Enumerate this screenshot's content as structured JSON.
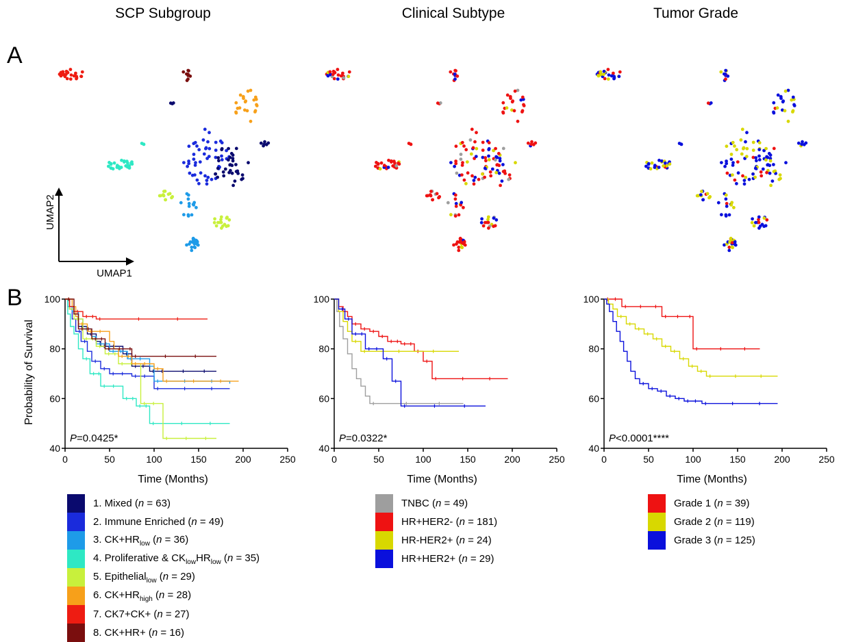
{
  "panel_letters": {
    "a": "A",
    "b": "B"
  },
  "column_titles": [
    "SCP Subgroup",
    "Clinical Subtype",
    "Tumor Grade"
  ],
  "colors": {
    "mixed": "#0a0a6e",
    "immune": "#1a2bdc",
    "ck_hr_low": "#1e9be8",
    "prolif": "#2ee8c4",
    "epi_low": "#c8f03c",
    "ck_hr_high": "#f7a01a",
    "ck7": "#ee1c12",
    "ck_hr": "#7a0e0e",
    "tnbc": "#9e9e9e",
    "hr_her2neg": "#ee1212",
    "hrneg_her2pos": "#d8d800",
    "hr_her2pos": "#0a10dc",
    "grade1": "#ee1212",
    "grade2": "#d8d800",
    "grade3": "#0a10dc"
  },
  "umap_axes": {
    "x": "UMAP1",
    "y": "UMAP2"
  },
  "chart_data": [
    {
      "type": "line",
      "title": "SCP Subgroup",
      "xlabel": "Time (Months)",
      "ylabel": "Probability of Survival",
      "xlim": [
        0,
        250
      ],
      "ylim": [
        40,
        100
      ],
      "xticks": [
        0,
        50,
        100,
        150,
        200,
        250
      ],
      "yticks": [
        40,
        60,
        80,
        100
      ],
      "annotation": {
        "italic": "P",
        "rest": "=0.0425*"
      },
      "series": [
        {
          "name": "1. Mixed (n = 63)",
          "color": "mixed",
          "x": [
            0,
            5,
            10,
            15,
            25,
            35,
            40,
            65,
            75,
            95,
            105,
            170
          ],
          "y": [
            100,
            97,
            94,
            89,
            86,
            83,
            81,
            78,
            73,
            71,
            71,
            71
          ]
        },
        {
          "name": "2. Immune Enriched (n = 49)",
          "color": "immune",
          "x": [
            0,
            5,
            8,
            12,
            18,
            25,
            30,
            40,
            50,
            75,
            100,
            185
          ],
          "y": [
            100,
            96,
            92,
            87,
            83,
            79,
            75,
            72,
            70,
            69,
            64,
            64
          ]
        },
        {
          "name": "3. CK+HRlow (n = 36)",
          "color": "ck_hr_low",
          "x": [
            0,
            3,
            8,
            15,
            20,
            30,
            35,
            50,
            70,
            95,
            100,
            185
          ],
          "y": [
            100,
            97,
            95,
            92,
            88,
            85,
            82,
            79,
            76,
            73,
            67,
            66
          ]
        },
        {
          "name": "4. Proliferative & CKlowHRlow (n = 35)",
          "color": "prolif",
          "x": [
            0,
            3,
            6,
            10,
            15,
            20,
            28,
            40,
            65,
            80,
            95,
            185
          ],
          "y": [
            100,
            94,
            89,
            86,
            80,
            76,
            70,
            65,
            60,
            57,
            50,
            50
          ]
        },
        {
          "name": "5. Epithelial low (n = 29)",
          "color": "epi_low",
          "x": [
            0,
            5,
            10,
            20,
            35,
            45,
            60,
            85,
            110,
            170
          ],
          "y": [
            100,
            96,
            92,
            84,
            81,
            78,
            74,
            58,
            44,
            44
          ]
        },
        {
          "name": "6. CK+HRhigh (n = 28)",
          "color": "ck_hr_high",
          "x": [
            0,
            8,
            12,
            15,
            25,
            50,
            55,
            60,
            75,
            100,
            110,
            195
          ],
          "y": [
            100,
            97,
            93,
            90,
            87,
            83,
            80,
            77,
            74,
            72,
            67,
            67
          ]
        },
        {
          "name": "7. CK7+CK+ (n = 27)",
          "color": "ck7",
          "x": [
            0,
            5,
            10,
            20,
            35,
            160
          ],
          "y": [
            100,
            97,
            95,
            93,
            92,
            92
          ]
        },
        {
          "name": "8. CK+HR+ (n = 16)",
          "color": "ck_hr",
          "x": [
            0,
            10,
            15,
            30,
            45,
            75,
            170
          ],
          "y": [
            100,
            94,
            88,
            84,
            80,
            77,
            77
          ]
        }
      ]
    },
    {
      "type": "line",
      "title": "Clinical Subtype",
      "xlabel": "Time (Months)",
      "ylabel": "",
      "xlim": [
        0,
        250
      ],
      "ylim": [
        40,
        100
      ],
      "xticks": [
        0,
        50,
        100,
        150,
        200,
        250
      ],
      "yticks": [
        40,
        60,
        80,
        100
      ],
      "annotation": {
        "italic": "P",
        "rest": "=0.0322*"
      },
      "series": [
        {
          "name": "TNBC (n = 49)",
          "color": "tnbc",
          "x": [
            0,
            3,
            6,
            10,
            15,
            20,
            25,
            30,
            35,
            40,
            145
          ],
          "y": [
            100,
            95,
            89,
            84,
            78,
            72,
            68,
            65,
            61,
            58,
            58
          ]
        },
        {
          "name": "HR+HER2- (n = 181)",
          "color": "hr_her2neg",
          "x": [
            0,
            5,
            10,
            15,
            20,
            30,
            40,
            50,
            60,
            75,
            90,
            100,
            110,
            195
          ],
          "y": [
            100,
            97,
            95,
            93,
            90,
            88,
            87,
            85,
            83,
            82,
            79,
            75,
            68,
            68
          ]
        },
        {
          "name": "HR-HER2+ (n = 24)",
          "color": "hrneg_her2pos",
          "x": [
            0,
            5,
            10,
            15,
            20,
            30,
            140
          ],
          "y": [
            100,
            95,
            91,
            87,
            83,
            79,
            79
          ]
        },
        {
          "name": "HR+HER2+ (n = 29)",
          "color": "hr_her2pos",
          "x": [
            0,
            5,
            12,
            20,
            35,
            55,
            65,
            75,
            170
          ],
          "y": [
            100,
            96,
            92,
            86,
            80,
            76,
            67,
            57,
            57
          ]
        }
      ]
    },
    {
      "type": "line",
      "title": "Tumor Grade",
      "xlabel": "Time (Months)",
      "ylabel": "",
      "xlim": [
        0,
        250
      ],
      "ylim": [
        40,
        100
      ],
      "xticks": [
        0,
        50,
        100,
        150,
        200,
        250
      ],
      "yticks": [
        40,
        60,
        80,
        100
      ],
      "annotation": {
        "italic": "P",
        "rest": "<0.0001****"
      },
      "series": [
        {
          "name": "Grade 1 (n = 39)",
          "color": "grade1",
          "x": [
            0,
            20,
            65,
            100,
            175
          ],
          "y": [
            100,
            97,
            93,
            80,
            80
          ]
        },
        {
          "name": "Grade 2 (n = 119)",
          "color": "grade2",
          "x": [
            0,
            5,
            10,
            15,
            25,
            35,
            45,
            55,
            65,
            75,
            85,
            95,
            105,
            115,
            195
          ],
          "y": [
            100,
            98,
            96,
            93,
            90,
            88,
            86,
            84,
            81,
            79,
            76,
            73,
            71,
            69,
            69
          ]
        },
        {
          "name": "Grade 3 (n = 125)",
          "color": "grade3",
          "x": [
            0,
            3,
            6,
            10,
            14,
            18,
            22,
            26,
            30,
            35,
            40,
            50,
            60,
            70,
            80,
            90,
            110,
            195
          ],
          "y": [
            100,
            98,
            95,
            91,
            87,
            83,
            79,
            75,
            71,
            68,
            66,
            64,
            63,
            61,
            60,
            59,
            58,
            58
          ]
        }
      ]
    }
  ],
  "umap_clusters": [
    {
      "key": "ck7",
      "cx": 102,
      "cy": 108,
      "rx": 20,
      "ry": 8,
      "n": 28
    },
    {
      "key": "ck_hr",
      "cx": 274,
      "cy": 108,
      "rx": 7,
      "ry": 14,
      "n": 10
    },
    {
      "key": "mixed",
      "cx": 251,
      "cy": 150,
      "rx": 3,
      "ry": 3,
      "n": 3
    },
    {
      "key": "ck_hr_high",
      "cx": 362,
      "cy": 158,
      "rx": 18,
      "ry": 28,
      "n": 22
    },
    {
      "key": "prolif",
      "cx": 177,
      "cy": 241,
      "rx": 21,
      "ry": 7,
      "n": 28
    },
    {
      "key": "prolif",
      "cx": 209,
      "cy": 210,
      "rx": 2,
      "ry": 3,
      "n": 3
    },
    {
      "key": "immune",
      "cx": 300,
      "cy": 228,
      "rx": 35,
      "ry": 42,
      "n": 50
    },
    {
      "key": "mixed",
      "cx": 337,
      "cy": 242,
      "rx": 26,
      "ry": 30,
      "n": 35
    },
    {
      "key": "mixed",
      "cx": 386,
      "cy": 210,
      "rx": 7,
      "ry": 4,
      "n": 6
    },
    {
      "key": "epi_low",
      "cx": 243,
      "cy": 285,
      "rx": 10,
      "ry": 7,
      "n": 12
    },
    {
      "key": "epi_low",
      "cx": 324,
      "cy": 324,
      "rx": 12,
      "ry": 10,
      "n": 16
    },
    {
      "key": "ck_hr_low",
      "cx": 275,
      "cy": 300,
      "rx": 12,
      "ry": 18,
      "n": 14
    },
    {
      "key": "ck_hr_low",
      "cx": 281,
      "cy": 357,
      "rx": 9,
      "ry": 10,
      "n": 22
    }
  ],
  "legends": [
    {
      "items": [
        {
          "color": "mixed",
          "pre": "1. Mixed (",
          "n": "n",
          "post": " = 63)",
          "subs": []
        },
        {
          "color": "immune",
          "pre": "2. Immune Enriched (",
          "n": "n",
          "post": " = 49)",
          "subs": []
        },
        {
          "color": "ck_hr_low",
          "pre": "3. CK+HR",
          "sub1": "low",
          "mid": " (",
          "n": "n",
          "post": " = 36)"
        },
        {
          "color": "prolif",
          "pre": "4. Proliferative & CK",
          "sub1": "low",
          "mid1": "HR",
          "sub2": "low",
          "mid": " (",
          "n": "n",
          "post": " = 35)"
        },
        {
          "color": "epi_low",
          "pre": "5. Epithelial",
          "sub1": "low",
          "mid": " (",
          "n": "n",
          "post": " = 29)"
        },
        {
          "color": "ck_hr_high",
          "pre": "6. CK+HR",
          "sub1": "high",
          "mid": " (",
          "n": "n",
          "post": " = 28)"
        },
        {
          "color": "ck7",
          "pre": "7. CK7+CK+ (",
          "n": "n",
          "post": " = 27)"
        },
        {
          "color": "ck_hr",
          "pre": "8. CK+HR+ (",
          "n": "n",
          "post": " = 16)"
        }
      ]
    },
    {
      "items": [
        {
          "color": "tnbc",
          "pre": "TNBC (",
          "n": "n",
          "post": " = 49)"
        },
        {
          "color": "hr_her2neg",
          "pre": "HR+HER2- (",
          "n": "n",
          "post": " = 181)"
        },
        {
          "color": "hrneg_her2pos",
          "pre": "HR-HER2+ (",
          "n": "n",
          "post": " = 24)"
        },
        {
          "color": "hr_her2pos",
          "pre": "HR+HER2+ (",
          "n": "n",
          "post": " = 29)"
        }
      ]
    },
    {
      "items": [
        {
          "color": "grade1",
          "pre": "Grade 1 (",
          "n": "n",
          "post": " = 39)"
        },
        {
          "color": "grade2",
          "pre": "Grade 2 (",
          "n": "n",
          "post": " = 119)"
        },
        {
          "color": "grade3",
          "pre": "Grade 3 (",
          "n": "n",
          "post": " = 125)"
        }
      ]
    }
  ]
}
